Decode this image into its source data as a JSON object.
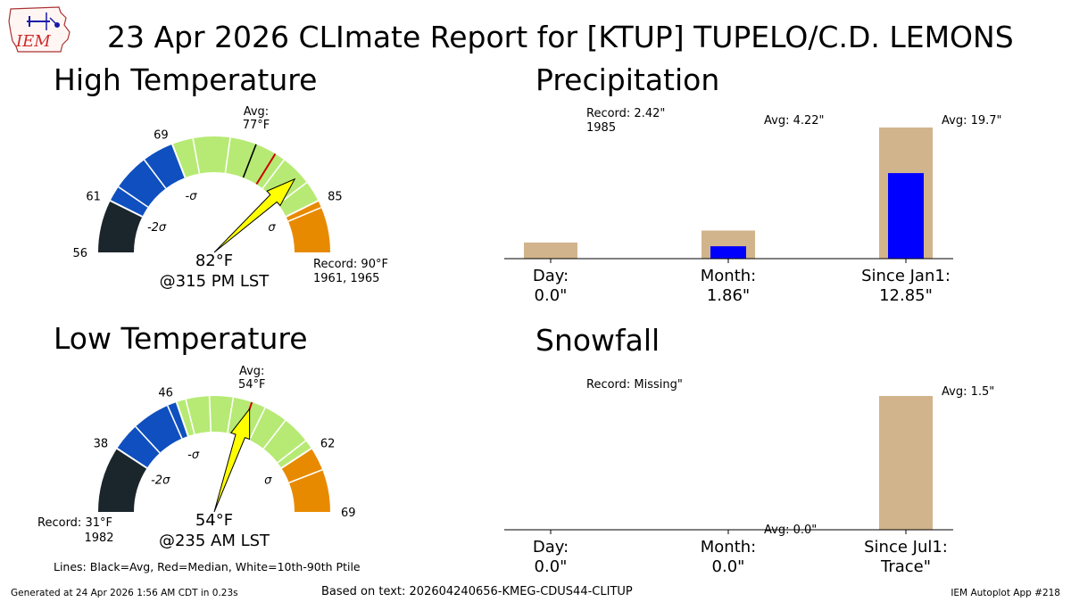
{
  "header": {
    "title": "23 Apr 2026 CLImate Report for [KTUP] TUPELO/C.D. LEMONS",
    "logo_text": "IEM"
  },
  "footer": {
    "generated": "Generated at 24 Apr 2026 1:56 AM CDT in 0.23s",
    "based_on": "Based on text: 202604240656-KMEG-CDUS44-CLITUP",
    "app": "IEM Autoplot App #218",
    "legend_note": "Lines: Black=Avg, Red=Median, White=10th-90th Ptile"
  },
  "colors": {
    "below_2sigma": "#1b262c",
    "minus_sigma": "#0f4fbf",
    "normal": "#b6ea74",
    "plus_sigma": "#e88a00",
    "median_line": "#cc0000",
    "avg_line": "#000000",
    "needle": "#ffff00",
    "bar_background": "#d2b48c",
    "bar_value": "#0000ff"
  },
  "chart_data": [
    {
      "type": "gauge",
      "title": "High Temperature",
      "range": [
        56,
        90
      ],
      "minus_2sigma_label": "-2σ",
      "minus_sigma_label": "-σ",
      "plus_sigma_label": "σ",
      "bands": [
        {
          "from": 56,
          "to": 61,
          "color_key": "below_2sigma"
        },
        {
          "from": 61,
          "to": 69,
          "color_key": "minus_sigma"
        },
        {
          "from": 69,
          "to": 85,
          "color_key": "normal"
        },
        {
          "from": 85,
          "to": 90,
          "color_key": "plus_sigma"
        }
      ],
      "tick_labels": [
        "56",
        "61",
        "69",
        "85"
      ],
      "tick_values": [
        56,
        61,
        69,
        85
      ],
      "avg_value": 77,
      "avg_label": "Avg:",
      "avg_temp": "77°F",
      "median_value": 79,
      "percentile_lines": [
        62.5,
        66,
        71,
        74.5,
        80,
        83,
        85.7
      ],
      "value": 82,
      "value_label": "82°F",
      "time_label": "@315 PM LST",
      "record_label": "Record: 90°F",
      "record_years": "1961, 1965"
    },
    {
      "type": "gauge",
      "title": "Low Temperature",
      "range": [
        31,
        69
      ],
      "minus_2sigma_label": "-2σ",
      "minus_sigma_label": "-σ",
      "plus_sigma_label": "σ",
      "bands": [
        {
          "from": 31,
          "to": 38,
          "color_key": "below_2sigma"
        },
        {
          "from": 38,
          "to": 46,
          "color_key": "minus_sigma"
        },
        {
          "from": 46,
          "to": 62,
          "color_key": "normal"
        },
        {
          "from": 62,
          "to": 69,
          "color_key": "plus_sigma"
        }
      ],
      "tick_labels": [
        "38",
        "46",
        "62",
        "69"
      ],
      "tick_values": [
        38,
        46,
        62,
        69
      ],
      "avg_value": 54,
      "avg_label": "Avg:",
      "avg_temp": "54°F",
      "median_value": 54,
      "percentile_lines": [
        41,
        45,
        47,
        49.5,
        52,
        55.5,
        58,
        61,
        64.5
      ],
      "value": 54,
      "value_label": "54°F",
      "time_label": "@235 AM LST",
      "record_label": "Record: 31°F",
      "record_years": "1982"
    },
    {
      "type": "bar",
      "title": "Precipitation",
      "ylim": [
        0,
        20.9
      ],
      "categories": [
        "Day:",
        "Month:",
        "Since Jan1:"
      ],
      "values_text": [
        "0.0\"",
        "1.86\"",
        "12.85\""
      ],
      "values": [
        0.0,
        1.86,
        12.85
      ],
      "background_values": [
        2.42,
        4.22,
        19.7
      ],
      "annotations": [
        "Record: 2.42\"",
        "Avg: 4.22\"",
        "Avg: 19.7\""
      ],
      "record_year": "1985"
    },
    {
      "type": "bar",
      "title": "Snowfall",
      "ylim": [
        0,
        1.55
      ],
      "categories": [
        "Day:",
        "Month:",
        "Since Jul1:"
      ],
      "values_text": [
        "0.0\"",
        "0.0\"",
        "Trace\""
      ],
      "values": [
        0.0,
        0.0,
        0.0
      ],
      "background_values": [
        null,
        0.0,
        1.5
      ],
      "annotations": [
        "Record: Missing\"",
        "Avg: 0.0\"",
        "Avg: 1.5\""
      ]
    }
  ]
}
